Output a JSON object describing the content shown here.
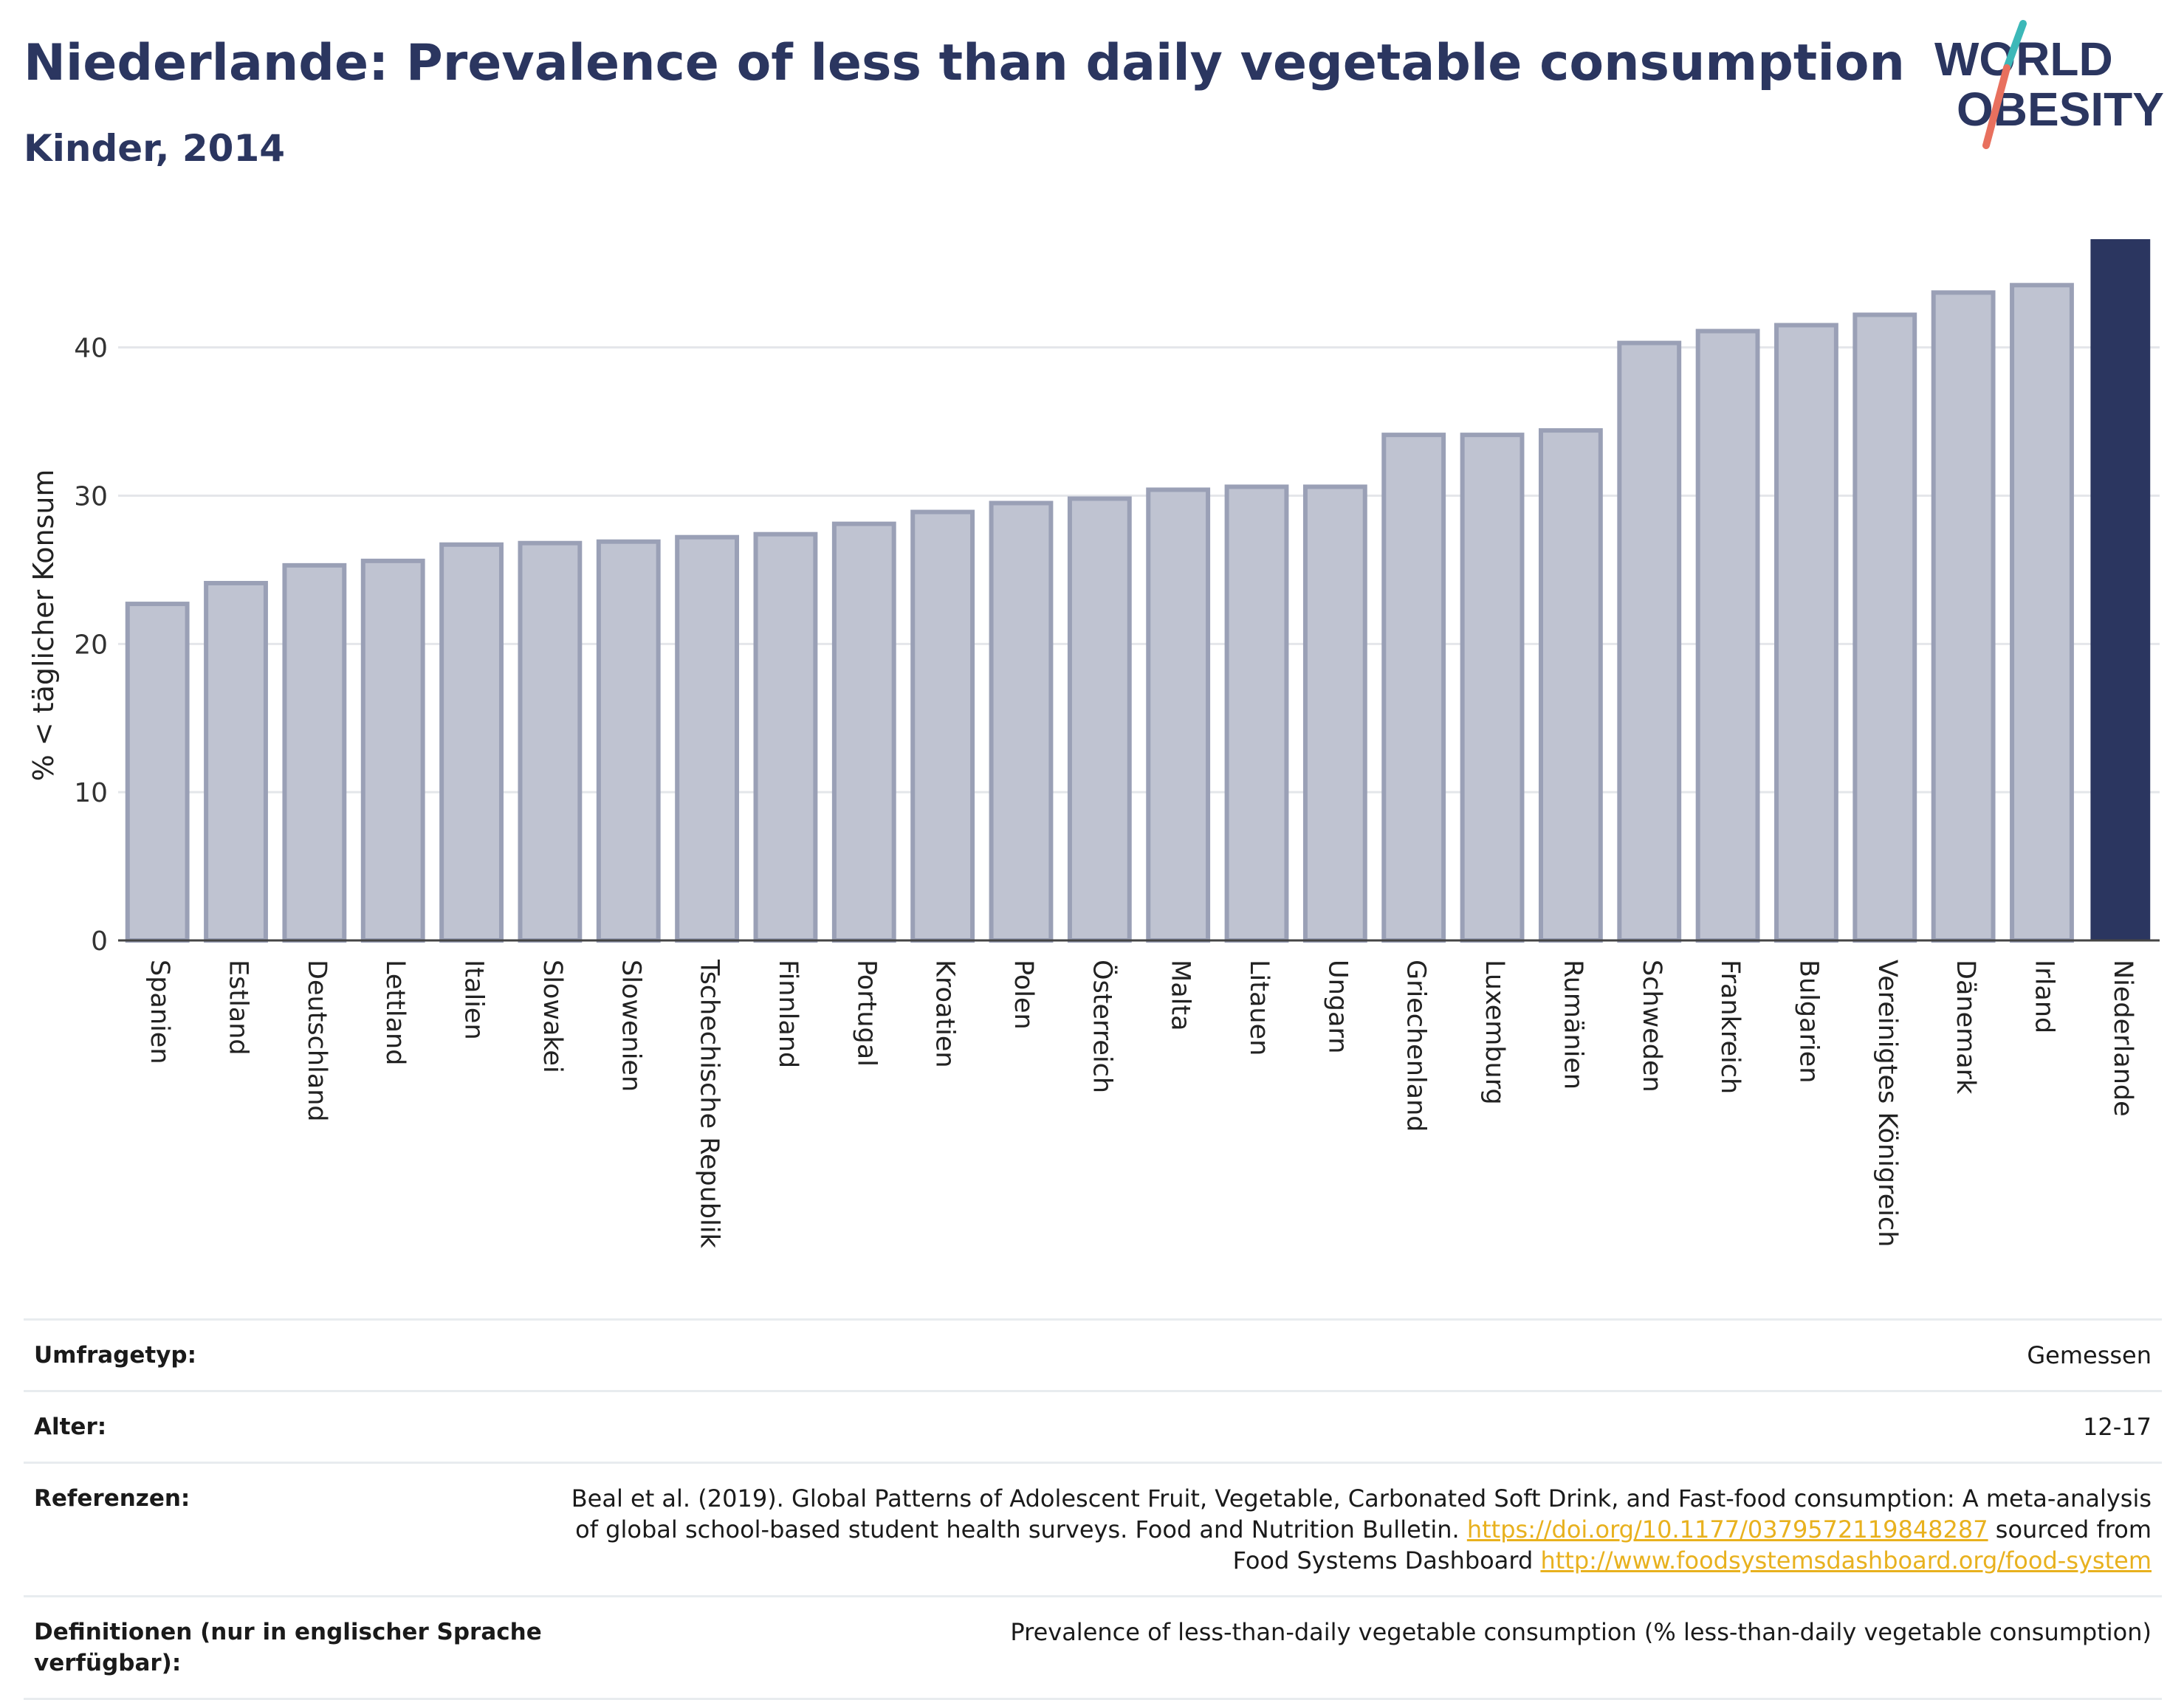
{
  "header": {
    "title": "Niederlande: Prevalence of less than daily vegetable consumption",
    "subtitle": "Kinder, 2014",
    "logo_line1": "WORLD",
    "logo_line2": "OBESITY"
  },
  "chart_data": {
    "type": "bar",
    "ylabel": "% < täglicher Konsum",
    "ylim": [
      0,
      47.5
    ],
    "yticks": [
      0,
      10,
      20,
      30,
      40
    ],
    "grid": true,
    "categories": [
      "Spanien",
      "Estland",
      "Deutschland",
      "Lettland",
      "Italien",
      "Slowakei",
      "Slowenien",
      "Tschechische Republik",
      "Finnland",
      "Portugal",
      "Kroatien",
      "Polen",
      "Österreich",
      "Malta",
      "Litauen",
      "Ungarn",
      "Griechenland",
      "Luxemburg",
      "Rumänien",
      "Schweden",
      "Frankreich",
      "Bulgarien",
      "Vereinigtes Königreich",
      "Dänemark",
      "Irland",
      "Niederlande"
    ],
    "values": [
      22.7,
      24.1,
      25.3,
      25.6,
      26.7,
      26.8,
      26.9,
      27.2,
      27.4,
      28.1,
      28.9,
      29.5,
      29.8,
      30.4,
      30.6,
      30.6,
      34.1,
      34.1,
      34.4,
      40.3,
      41.1,
      41.5,
      42.2,
      43.7,
      44.2,
      47.3
    ],
    "highlight": "Niederlande",
    "colors": {
      "bar": "#bfc3d1",
      "bar_edge": "#9aa0b6",
      "highlight": "#2b3660",
      "axis": "#444444",
      "grid": "#e4e6ea"
    }
  },
  "meta": {
    "survey_label": "Umfragetyp:",
    "survey_value": "Gemessen",
    "age_label": "Alter:",
    "age_value": "12-17",
    "ref_label": "Referenzen:",
    "ref_text1": "Beal et al. (2019). Global Patterns of Adolescent Fruit, Vegetable, Carbonated Soft Drink, and Fast-food consumption: A meta-analysis of global school-based student health surveys. Food and Nutrition Bulletin.",
    "ref_link1": "https://doi.org/10.1177/0379572119848287",
    "ref_text2": "sourced from Food Systems Dashboard",
    "ref_link2": "http://www.foodsystemsdashboard.org/food-system",
    "def_label": "Definitionen (nur in englischer Sprache verfügbar):",
    "def_value": "Prevalence of less-than-daily vegetable consumption (% less-than-daily vegetable consumption)"
  }
}
